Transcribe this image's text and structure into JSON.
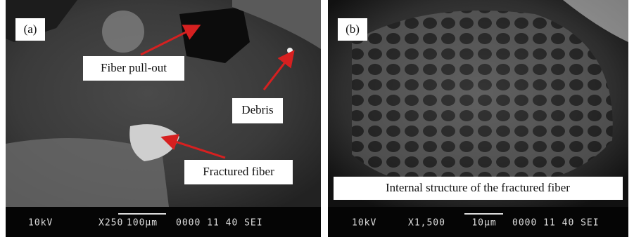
{
  "panels": [
    {
      "label": "(a)",
      "annotations": [
        "Fiber pull-out",
        "Debris",
        "Fractured fiber"
      ],
      "info_bar": {
        "voltage": "10kV",
        "magnification": "X250",
        "scale": "100µm",
        "code": "0000 11 40 SEI"
      }
    },
    {
      "label": "(b)",
      "annotations": [
        "Internal structure of the fractured fiber"
      ],
      "info_bar": {
        "voltage": "10kV",
        "magnification": "X1,500",
        "scale": "10µm",
        "code": "0000 11 40 SEI"
      }
    }
  ]
}
